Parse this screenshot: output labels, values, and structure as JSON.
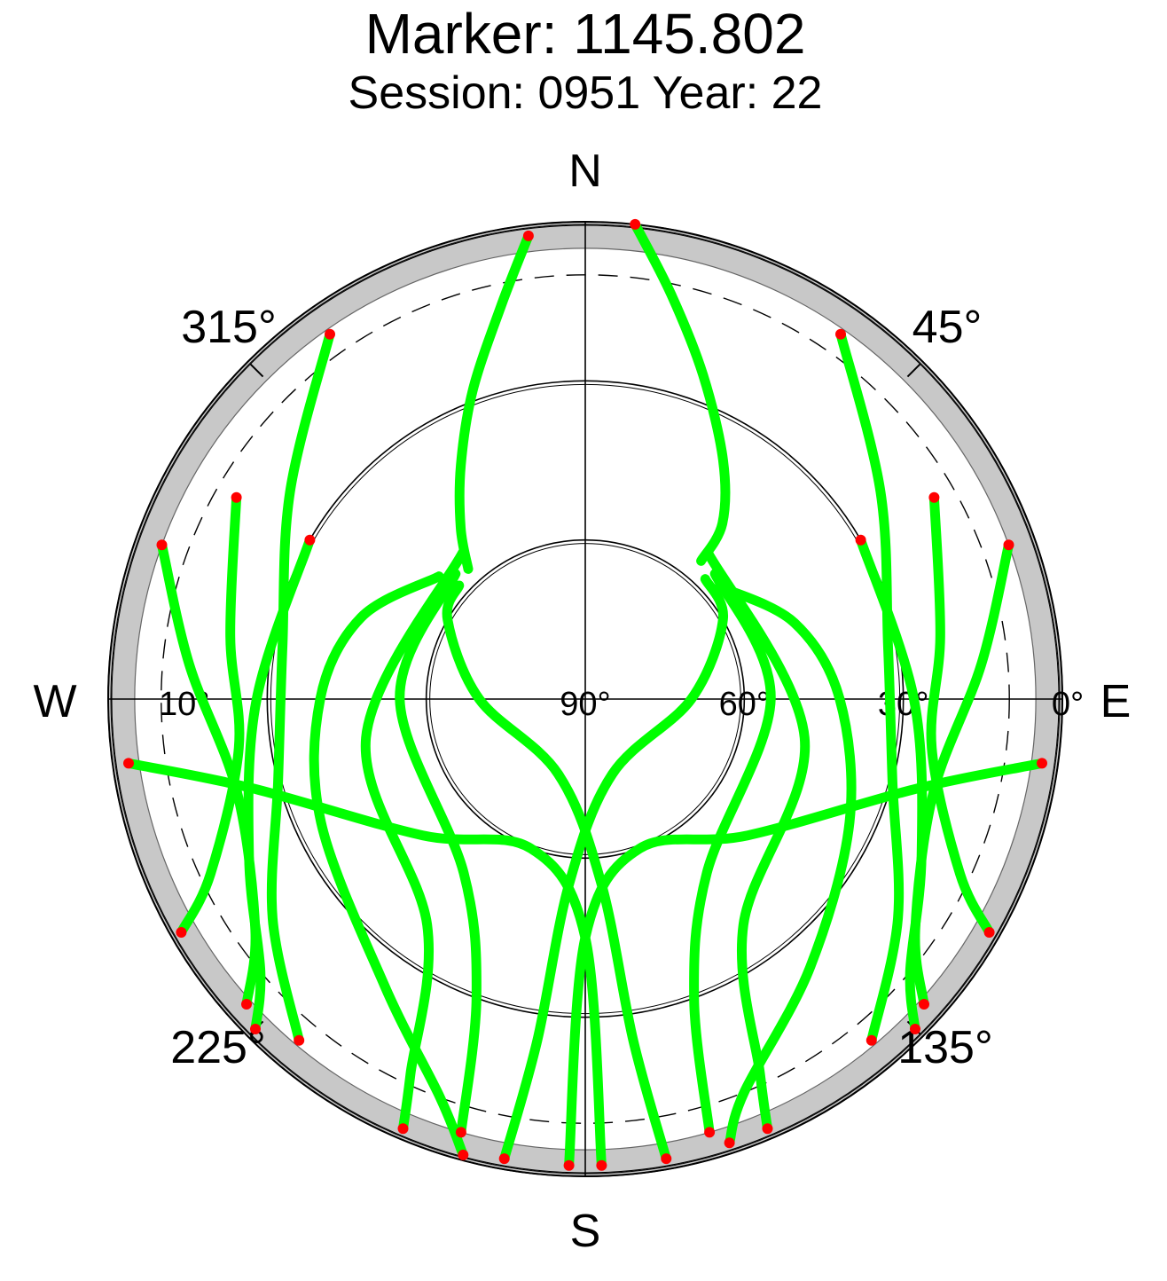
{
  "chart_data": {
    "type": "scatter",
    "projection": "polar-skyplot",
    "title": "Marker: 1145.802",
    "subtitle": "Session: 0951 Year: 22",
    "directions": {
      "north": "N",
      "east": "E",
      "south": "S",
      "west": "W"
    },
    "azimuth_labels": [
      {
        "az": 315,
        "text": "315°"
      },
      {
        "az": 45,
        "text": "45°"
      },
      {
        "az": 225,
        "text": "225°"
      },
      {
        "az": 135,
        "text": "135°"
      }
    ],
    "elevation_labels": [
      {
        "el": 90,
        "side": "east",
        "text": "90°"
      },
      {
        "el": 60,
        "side": "east",
        "text": "60°"
      },
      {
        "el": 30,
        "side": "east",
        "text": "30°"
      },
      {
        "el": 0,
        "side": "east",
        "text": "0°"
      },
      {
        "el": 10,
        "side": "west",
        "text": "10°"
      }
    ],
    "elevation_rings": [
      0,
      30,
      60
    ],
    "dashed_ring_elevation": 10,
    "elevation_range": [
      0,
      90
    ],
    "azimuth_range": [
      0,
      360
    ],
    "colors": {
      "track": "#00ff00",
      "endpoint": "#ff0000",
      "mask": "#c8c8c8",
      "grid": "#000000"
    },
    "horizon_mask_el_deg": 5,
    "series": [
      {
        "points_az_el": [
          [
            318,
            57
          ],
          [
            324,
            50
          ],
          [
            332,
            40
          ],
          [
            340,
            28
          ],
          [
            348,
            14
          ],
          [
            353,
            2
          ]
        ]
      },
      {
        "points_az_el": [
          [
            40,
            56
          ],
          [
            38,
            48
          ],
          [
            30,
            38
          ],
          [
            20,
            25
          ],
          [
            12,
            12
          ],
          [
            6,
            0
          ]
        ]
      },
      {
        "points_az_el": [
          [
            310,
            54
          ],
          [
            290,
            45
          ],
          [
            270,
            40
          ],
          [
            245,
            35
          ],
          [
            215,
            24
          ],
          [
            200,
            10
          ],
          [
            195,
            1
          ]
        ]
      },
      {
        "points_az_el": [
          [
            50,
            57
          ],
          [
            70,
            48
          ],
          [
            90,
            42
          ],
          [
            115,
            35
          ],
          [
            140,
            24
          ],
          [
            158,
            10
          ],
          [
            162,
            2
          ]
        ]
      },
      {
        "points_az_el": [
          [
            300,
            30
          ],
          [
            270,
            28
          ],
          [
            245,
            20
          ],
          [
            230,
            10
          ],
          [
            225,
            2
          ]
        ]
      },
      {
        "points_az_el": [
          [
            60,
            30
          ],
          [
            90,
            28
          ],
          [
            115,
            20
          ],
          [
            130,
            10
          ],
          [
            135,
            2
          ]
        ]
      },
      {
        "points_az_el": [
          [
            312,
            58
          ],
          [
            300,
            60
          ],
          [
            270,
            70
          ],
          [
            200,
            75
          ],
          [
            175,
            55
          ],
          [
            172,
            25
          ],
          [
            170,
            2
          ]
        ]
      },
      {
        "points_az_el": [
          [
            45,
            58
          ],
          [
            60,
            60
          ],
          [
            90,
            70
          ],
          [
            160,
            75
          ],
          [
            185,
            55
          ],
          [
            188,
            25
          ],
          [
            190,
            2
          ]
        ]
      },
      {
        "points_az_el": [
          [
            325,
            6
          ],
          [
            305,
            22
          ],
          [
            280,
            32
          ],
          [
            255,
            30
          ],
          [
            235,
            18
          ],
          [
            220,
            6
          ]
        ]
      },
      {
        "points_az_el": [
          [
            35,
            6
          ],
          [
            55,
            22
          ],
          [
            80,
            32
          ],
          [
            105,
            30
          ],
          [
            125,
            18
          ],
          [
            140,
            6
          ]
        ]
      },
      {
        "points_az_el": [
          [
            290,
            5
          ],
          [
            275,
            15
          ],
          [
            255,
            22
          ],
          [
            235,
            14
          ],
          [
            228,
            4
          ]
        ]
      },
      {
        "points_az_el": [
          [
            70,
            5
          ],
          [
            85,
            15
          ],
          [
            105,
            22
          ],
          [
            125,
            14
          ],
          [
            132,
            4
          ]
        ]
      },
      {
        "points_az_el": [
          [
            314,
            56
          ],
          [
            270,
            55
          ],
          [
            215,
            50
          ],
          [
            200,
            30
          ],
          [
            196,
            5
          ]
        ]
      },
      {
        "points_az_el": [
          [
            46,
            56
          ],
          [
            90,
            55
          ],
          [
            145,
            50
          ],
          [
            160,
            30
          ],
          [
            164,
            5
          ]
        ]
      },
      {
        "points_az_el": [
          [
            300,
            14
          ],
          [
            280,
            22
          ],
          [
            262,
            24
          ],
          [
            245,
            12
          ],
          [
            240,
            2
          ]
        ]
      },
      {
        "points_az_el": [
          [
            60,
            14
          ],
          [
            80,
            22
          ],
          [
            98,
            24
          ],
          [
            115,
            12
          ],
          [
            120,
            2
          ]
        ]
      },
      {
        "points_az_el": [
          [
            320,
            54
          ],
          [
            260,
            48
          ],
          [
            215,
            38
          ],
          [
            205,
            12
          ],
          [
            203,
            2
          ]
        ]
      },
      {
        "points_az_el": [
          [
            40,
            54
          ],
          [
            100,
            48
          ],
          [
            145,
            38
          ],
          [
            155,
            12
          ],
          [
            157,
            2
          ]
        ]
      },
      {
        "points_az_el": [
          [
            262,
            3
          ],
          [
            255,
            25
          ],
          [
            230,
            50
          ],
          [
            200,
            60
          ],
          [
            180,
            45
          ],
          [
            178,
            2
          ]
        ]
      },
      {
        "points_az_el": [
          [
            98,
            3
          ],
          [
            105,
            25
          ],
          [
            130,
            50
          ],
          [
            160,
            60
          ],
          [
            180,
            45
          ],
          [
            182,
            2
          ]
        ]
      }
    ]
  }
}
